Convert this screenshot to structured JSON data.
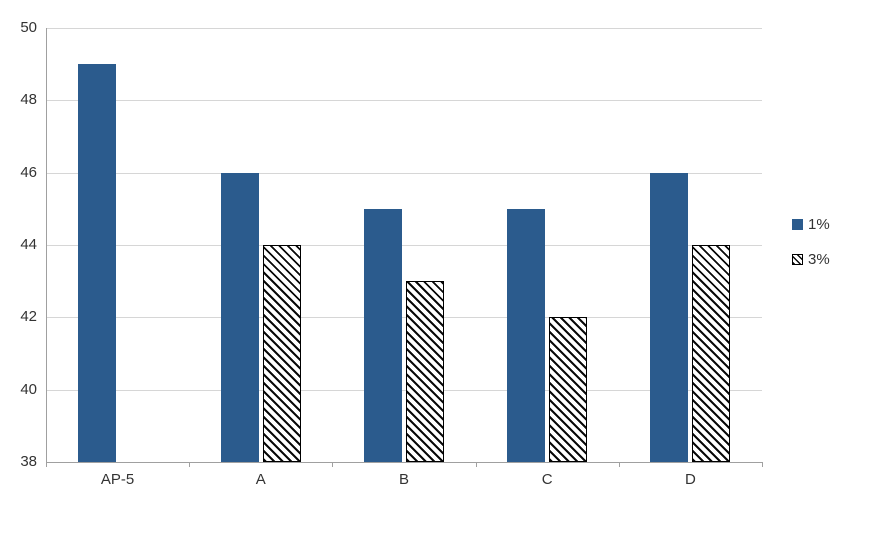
{
  "chart_data": {
    "type": "bar",
    "title": "",
    "xlabel": "",
    "ylabel": "",
    "categories": [
      "AP-5",
      "A",
      "B",
      "C",
      "D"
    ],
    "series": [
      {
        "name": "1%",
        "style": "solid",
        "color": "#2b5b8d",
        "values": [
          49,
          46,
          45,
          45,
          46
        ]
      },
      {
        "name": "3%",
        "style": "diagonal-hatch-black-on-white",
        "values": [
          null,
          44,
          43,
          42,
          44
        ]
      }
    ],
    "ylim": [
      38,
      50
    ],
    "yticks": [
      38,
      40,
      42,
      44,
      46,
      48,
      50
    ],
    "ytick_step": 2,
    "grid": true,
    "gridline_color": "#d6d6d6",
    "axis_color": "#a0a0a0",
    "legend_position": "right"
  }
}
